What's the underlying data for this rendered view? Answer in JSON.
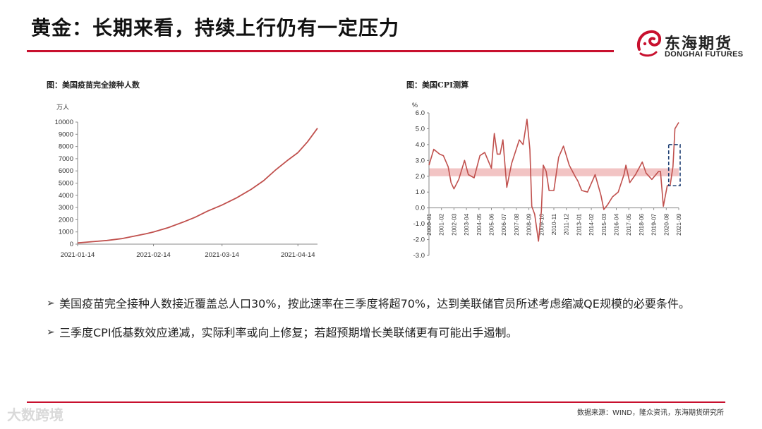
{
  "page": {
    "title": "黄金：长期来看，持续上行仍有一定压力",
    "logo_cn": "东海期货",
    "logo_en": "DONGHAI FUTURES",
    "source": "数据来源：WIND，隆众资讯，东海期货研究所",
    "watermark": "大数跨境",
    "accent": "#c8102e",
    "line_color": "#c0504d",
    "band_color": "#f2c4c4"
  },
  "bullets": [
    "美国疫苗完全接种人数接近覆盖总人口30%，按此速率在三季度将超70%，达到美联储官员所述考虑缩减QE规模的必要条件。",
    "三季度CPI低基数效应递减，实际利率或向上修复；若超预期增长美联储更有可能出手遏制。"
  ],
  "chart_data": [
    {
      "type": "line",
      "title": "图：美国疫苗完全接种人数",
      "unit": "万人",
      "ylim": [
        0,
        10000
      ],
      "yticks": [
        0,
        1000,
        2000,
        3000,
        4000,
        5000,
        6000,
        7000,
        8000,
        9000,
        10000
      ],
      "x_range": [
        "2021-01-14",
        "2021-04-22"
      ],
      "xticks": [
        "2021-01-14",
        "2021-02-14",
        "2021-03-14",
        "2021-04-14"
      ],
      "grid": false,
      "series": [
        {
          "points": [
            [
              "2021-01-14",
              100
            ],
            [
              "2021-01-20",
              200
            ],
            [
              "2021-01-26",
              300
            ],
            [
              "2021-02-01",
              450
            ],
            [
              "2021-02-06",
              650
            ],
            [
              "2021-02-11",
              850
            ],
            [
              "2021-02-14",
              1000
            ],
            [
              "2021-02-20",
              1350
            ],
            [
              "2021-02-26",
              1800
            ],
            [
              "2021-03-03",
              2200
            ],
            [
              "2021-03-08",
              2700
            ],
            [
              "2021-03-14",
              3200
            ],
            [
              "2021-03-20",
              3800
            ],
            [
              "2021-03-26",
              4500
            ],
            [
              "2021-03-31",
              5200
            ],
            [
              "2021-04-05",
              6100
            ],
            [
              "2021-04-10",
              6900
            ],
            [
              "2021-04-14",
              7500
            ],
            [
              "2021-04-18",
              8400
            ],
            [
              "2021-04-22",
              9500
            ]
          ]
        }
      ]
    },
    {
      "type": "line",
      "title": "图：美国CPI测算",
      "unit": "%",
      "ylim": [
        -3.0,
        6.0
      ],
      "yticks": [
        "-3.0",
        "-2.0",
        "-1.0",
        "0.0",
        "1.0",
        "2.0",
        "3.0",
        "4.0",
        "5.0",
        "6.0"
      ],
      "x_range": [
        "2000-01",
        "2021-09"
      ],
      "xticks": [
        "2000-01",
        "2001-02",
        "2002-03",
        "2003-04",
        "2004-05",
        "2005-06",
        "2006-07",
        "2007-08",
        "2008-09",
        "2009-10",
        "2010-11",
        "2011-12",
        "2013-01",
        "2014-02",
        "2015-03",
        "2016-04",
        "2017-05",
        "2018-06",
        "2019-07",
        "2020-08",
        "2021-09"
      ],
      "band": [
        2.0,
        2.5
      ],
      "highlight_box": [
        "2020-12",
        "2021-09"
      ],
      "grid": false,
      "series": [
        {
          "points": [
            [
              "2000-01",
              2.7
            ],
            [
              "2000-06",
              3.7
            ],
            [
              "2000-12",
              3.4
            ],
            [
              "2001-04",
              3.3
            ],
            [
              "2001-09",
              2.6
            ],
            [
              "2001-12",
              1.6
            ],
            [
              "2002-03",
              1.2
            ],
            [
              "2002-08",
              1.8
            ],
            [
              "2003-02",
              3.0
            ],
            [
              "2003-06",
              2.1
            ],
            [
              "2003-12",
              1.9
            ],
            [
              "2004-06",
              3.3
            ],
            [
              "2004-11",
              3.5
            ],
            [
              "2005-06",
              2.5
            ],
            [
              "2005-09",
              4.7
            ],
            [
              "2005-12",
              3.4
            ],
            [
              "2006-03",
              3.4
            ],
            [
              "2006-06",
              4.3
            ],
            [
              "2006-10",
              1.3
            ],
            [
              "2007-03",
              2.8
            ],
            [
              "2007-11",
              4.3
            ],
            [
              "2008-03",
              4.0
            ],
            [
              "2008-07",
              5.6
            ],
            [
              "2008-10",
              3.7
            ],
            [
              "2008-12",
              0.1
            ],
            [
              "2009-03",
              -0.4
            ],
            [
              "2009-07",
              -2.1
            ],
            [
              "2009-10",
              -0.2
            ],
            [
              "2009-12",
              2.7
            ],
            [
              "2010-03",
              2.3
            ],
            [
              "2010-06",
              1.1
            ],
            [
              "2010-11",
              1.1
            ],
            [
              "2011-04",
              3.2
            ],
            [
              "2011-09",
              3.9
            ],
            [
              "2012-03",
              2.7
            ],
            [
              "2012-09",
              2.0
            ],
            [
              "2012-12",
              1.7
            ],
            [
              "2013-04",
              1.1
            ],
            [
              "2013-10",
              1.0
            ],
            [
              "2014-06",
              2.1
            ],
            [
              "2014-12",
              0.8
            ],
            [
              "2015-03",
              -0.1
            ],
            [
              "2015-07",
              0.2
            ],
            [
              "2015-12",
              0.7
            ],
            [
              "2016-06",
              1.0
            ],
            [
              "2016-12",
              2.1
            ],
            [
              "2017-02",
              2.7
            ],
            [
              "2017-06",
              1.6
            ],
            [
              "2017-12",
              2.1
            ],
            [
              "2018-07",
              2.9
            ],
            [
              "2018-11",
              2.2
            ],
            [
              "2019-05",
              1.8
            ],
            [
              "2019-12",
              2.3
            ],
            [
              "2020-02",
              2.3
            ],
            [
              "2020-05",
              0.1
            ],
            [
              "2020-09",
              1.4
            ],
            [
              "2020-12",
              1.4
            ],
            [
              "2021-03",
              2.6
            ],
            [
              "2021-05",
              5.0
            ],
            [
              "2021-09",
              5.4
            ]
          ]
        }
      ]
    }
  ]
}
